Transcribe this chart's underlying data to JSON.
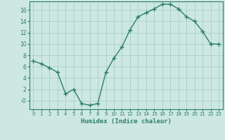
{
  "x": [
    0,
    1,
    2,
    3,
    4,
    5,
    6,
    7,
    8,
    9,
    10,
    11,
    12,
    13,
    14,
    15,
    16,
    17,
    18,
    19,
    20,
    21,
    22,
    23
  ],
  "y": [
    7,
    6.5,
    5.8,
    5.0,
    1.2,
    2.0,
    -0.5,
    -0.8,
    -0.5,
    5.0,
    7.5,
    9.5,
    12.5,
    14.8,
    15.5,
    16.2,
    17.0,
    17.0,
    16.2,
    14.8,
    14.0,
    12.2,
    10.0,
    10.0
  ],
  "line_color": "#2e7d6e",
  "marker": "+",
  "bg_color": "#cce8e0",
  "grid_color": "#aacfc8",
  "xlabel": "Humidex (Indice chaleur)",
  "xlim": [
    -0.5,
    23.5
  ],
  "ylim": [
    -1.5,
    17.5
  ],
  "yticks": [
    0,
    2,
    4,
    6,
    8,
    10,
    12,
    14,
    16
  ],
  "ytick_labels": [
    "-0",
    "2",
    "4",
    "6",
    "8",
    "10",
    "12",
    "14",
    "16"
  ],
  "xticks": [
    0,
    1,
    2,
    3,
    4,
    5,
    6,
    7,
    8,
    9,
    10,
    11,
    12,
    13,
    14,
    15,
    16,
    17,
    18,
    19,
    20,
    21,
    22,
    23
  ]
}
